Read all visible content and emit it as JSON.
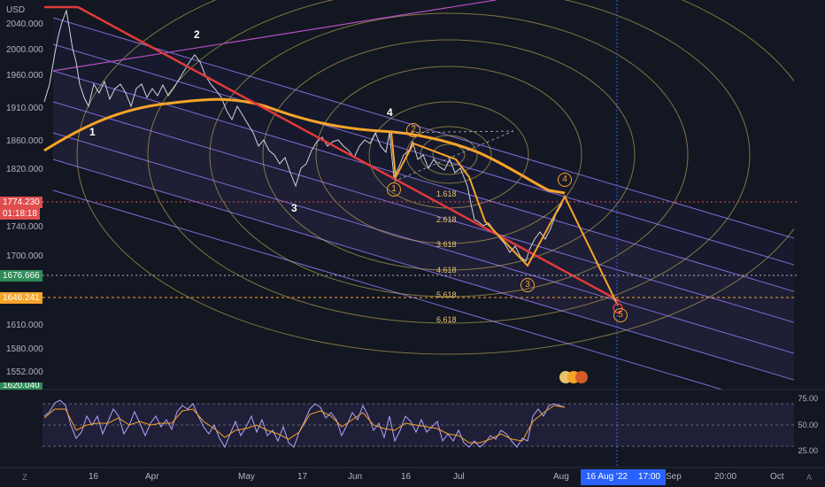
{
  "currency": "USD",
  "y_axis": [
    "2040.000",
    "2000.000",
    "1960.000",
    "1910.000",
    "1860.000",
    "1820.000",
    "1740.000",
    "1700.000",
    "1610.000",
    "1580.000",
    "1552.000"
  ],
  "price_tags": {
    "current": "1774.230",
    "countdown": "01:18:18",
    "level_a": "1676.666",
    "level_b": "1646.241",
    "bottom_partial": "1620.040"
  },
  "x_axis": [
    "16",
    "Apr",
    "May",
    "17",
    "Jun",
    "16",
    "Jul",
    "Aug",
    "Sep",
    "20:00",
    "Oct"
  ],
  "crosshair_date": "16 Aug '22",
  "crosshair_time": "17:00",
  "fib_levels": [
    "1.618",
    "2.618",
    "3.618",
    "4.618",
    "5.618",
    "6.618"
  ],
  "white_waves": [
    "1",
    "2",
    "3",
    "4"
  ],
  "orange_waves": [
    "1",
    "2",
    "3",
    "4",
    "5"
  ],
  "rsi_axis": [
    "75.00",
    "50.00",
    "25.00"
  ],
  "zone_left": "Z",
  "zone_right": "A",
  "colors": {
    "bg": "#131722",
    "trend": "#e03a3a",
    "ma": "#f7a428",
    "rsi": "#b8a0ff"
  }
}
